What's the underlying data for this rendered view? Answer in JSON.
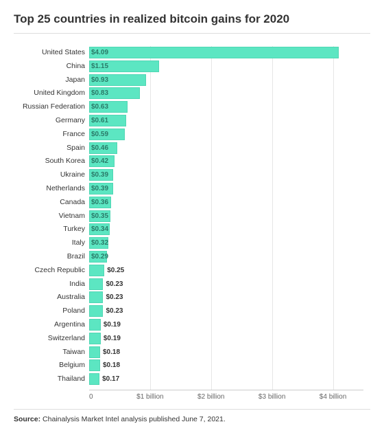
{
  "chart": {
    "type": "bar-horizontal",
    "title": "Top 25 countries in realized bitcoin gains for 2020",
    "x_max": 4.5,
    "x_min": 0,
    "label_inside_threshold": 0.29,
    "bar_color": "#5ce6c2",
    "bar_border_color": "#4fd6b3",
    "grid_color": "#e6e6e6",
    "background_color": "#ffffff",
    "title_fontsize": 17,
    "label_fontsize": 10.5,
    "value_fontsize": 10,
    "tick_fontsize": 10,
    "ticks": [
      {
        "value": 0,
        "label": "0"
      },
      {
        "value": 1,
        "label": "$1 billion"
      },
      {
        "value": 2,
        "label": "$2 billion"
      },
      {
        "value": 3,
        "label": "$3 billion"
      },
      {
        "value": 4,
        "label": "$4 billion"
      }
    ],
    "data": [
      {
        "country": "United States",
        "value": 4.09,
        "label": "$4.09"
      },
      {
        "country": "China",
        "value": 1.15,
        "label": "$1.15"
      },
      {
        "country": "Japan",
        "value": 0.93,
        "label": "$0.93"
      },
      {
        "country": "United Kingdom",
        "value": 0.83,
        "label": "$0.83"
      },
      {
        "country": "Russian Federation",
        "value": 0.63,
        "label": "$0.63"
      },
      {
        "country": "Germany",
        "value": 0.61,
        "label": "$0.61"
      },
      {
        "country": "France",
        "value": 0.59,
        "label": "$0.59"
      },
      {
        "country": "Spain",
        "value": 0.46,
        "label": "$0.46"
      },
      {
        "country": "South Korea",
        "value": 0.42,
        "label": "$0.42"
      },
      {
        "country": "Ukraine",
        "value": 0.39,
        "label": "$0.39"
      },
      {
        "country": "Netherlands",
        "value": 0.39,
        "label": "$0.39"
      },
      {
        "country": "Canada",
        "value": 0.36,
        "label": "$0.36"
      },
      {
        "country": "Vietnam",
        "value": 0.35,
        "label": "$0.35"
      },
      {
        "country": "Turkey",
        "value": 0.34,
        "label": "$0.34"
      },
      {
        "country": "Italy",
        "value": 0.32,
        "label": "$0.32"
      },
      {
        "country": "Brazil",
        "value": 0.29,
        "label": "$0.29"
      },
      {
        "country": "Czech Republic",
        "value": 0.25,
        "label": "$0.25"
      },
      {
        "country": "India",
        "value": 0.23,
        "label": "$0.23"
      },
      {
        "country": "Australia",
        "value": 0.23,
        "label": "$0.23"
      },
      {
        "country": "Poland",
        "value": 0.23,
        "label": "$0.23"
      },
      {
        "country": "Argentina",
        "value": 0.19,
        "label": "$0.19"
      },
      {
        "country": "Switzerland",
        "value": 0.19,
        "label": "$0.19"
      },
      {
        "country": "Taiwan",
        "value": 0.18,
        "label": "$0.18"
      },
      {
        "country": "Belgium",
        "value": 0.18,
        "label": "$0.18"
      },
      {
        "country": "Thailand",
        "value": 0.17,
        "label": "$0.17"
      }
    ]
  },
  "source": {
    "prefix": "Source:",
    "text": "Chainalysis Market Intel analysis published June 7, 2021."
  }
}
